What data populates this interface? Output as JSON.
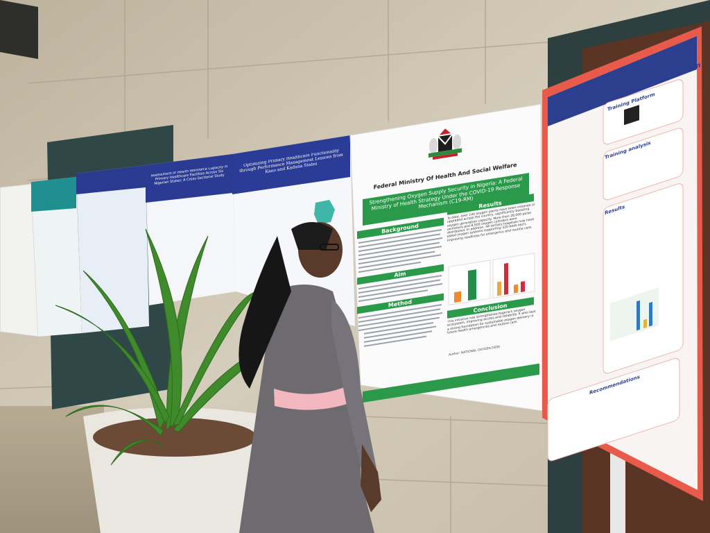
{
  "posters": {
    "workforce": {
      "title": "Assessment of Health Workforce Capacity in Primary Healthcare Facilities Across Six Nigerian States: A Cross-Sectional Study"
    },
    "phc": {
      "title": "Optimizing Primary Healthcare Functionality through Performance Management Lessons from Kano and Kaduna States"
    },
    "oxygen": {
      "organization": "Federal Ministry Of Health And Social Welfare",
      "title": "Strengthening Oxygen Supply Security in Nigeria: A Federal Ministry of Health Strategy Under the COVID-19 Response Mechanism (C19-RM)",
      "background": "Background",
      "results": "Results",
      "results_text": "To date, over 100 oxygen plants have been installed or upgraded across the country, significantly boosting oxygen generation capacity. More than 28,000 pulse oximeters and 8,500 oxygen cylinders were distributed. In addition, 44 tertiary hospitals now have piped oxygen systems supporting 320 beds each, improving readiness for emergency and routine care.",
      "aim": "Aim",
      "method": "Method",
      "conclusion": "Conclusion",
      "conclusion_text": "This initiative has strengthened Nigeria's oxygen ecosystem, improving access and reliability. It also lays a strong foundation for sustainable oxygen delivery in future health emergencies and routine care.",
      "author": "Author: NATIONAL OXYGEN DESK"
    },
    "training": {
      "accreditation": "Accreditation",
      "platform": "Training Platform",
      "analysis": "Training analysis",
      "results": "Results",
      "recommendations": "Recommendations"
    }
  }
}
